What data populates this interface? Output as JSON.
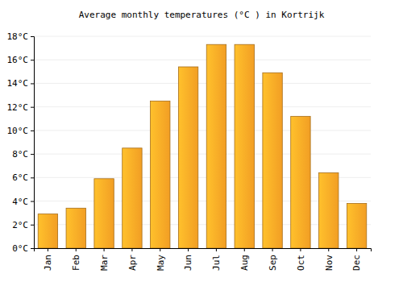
{
  "chart_data": {
    "type": "bar",
    "title": "Average monthly temperatures (°C ) in Kortrijk",
    "categories": [
      "Jan",
      "Feb",
      "Mar",
      "Apr",
      "May",
      "Jun",
      "Jul",
      "Aug",
      "Sep",
      "Oct",
      "Nov",
      "Dec"
    ],
    "values": [
      2.9,
      3.4,
      5.9,
      8.5,
      12.5,
      15.4,
      17.3,
      17.3,
      14.9,
      11.2,
      6.4,
      3.8
    ],
    "color": "#ffa726",
    "ylim": [
      0,
      18
    ],
    "yticks": [
      {
        "value": 0,
        "label": "0°C"
      },
      {
        "value": 2,
        "label": "2°C"
      },
      {
        "value": 4,
        "label": "4°C"
      },
      {
        "value": 6,
        "label": "6°C"
      },
      {
        "value": 8,
        "label": "8°C"
      },
      {
        "value": 10,
        "label": "10°C"
      },
      {
        "value": 12,
        "label": "12°C"
      },
      {
        "value": 14,
        "label": "14°C"
      },
      {
        "value": 16,
        "label": "16°C"
      },
      {
        "value": 18,
        "label": "18°C"
      }
    ],
    "grid": true
  }
}
